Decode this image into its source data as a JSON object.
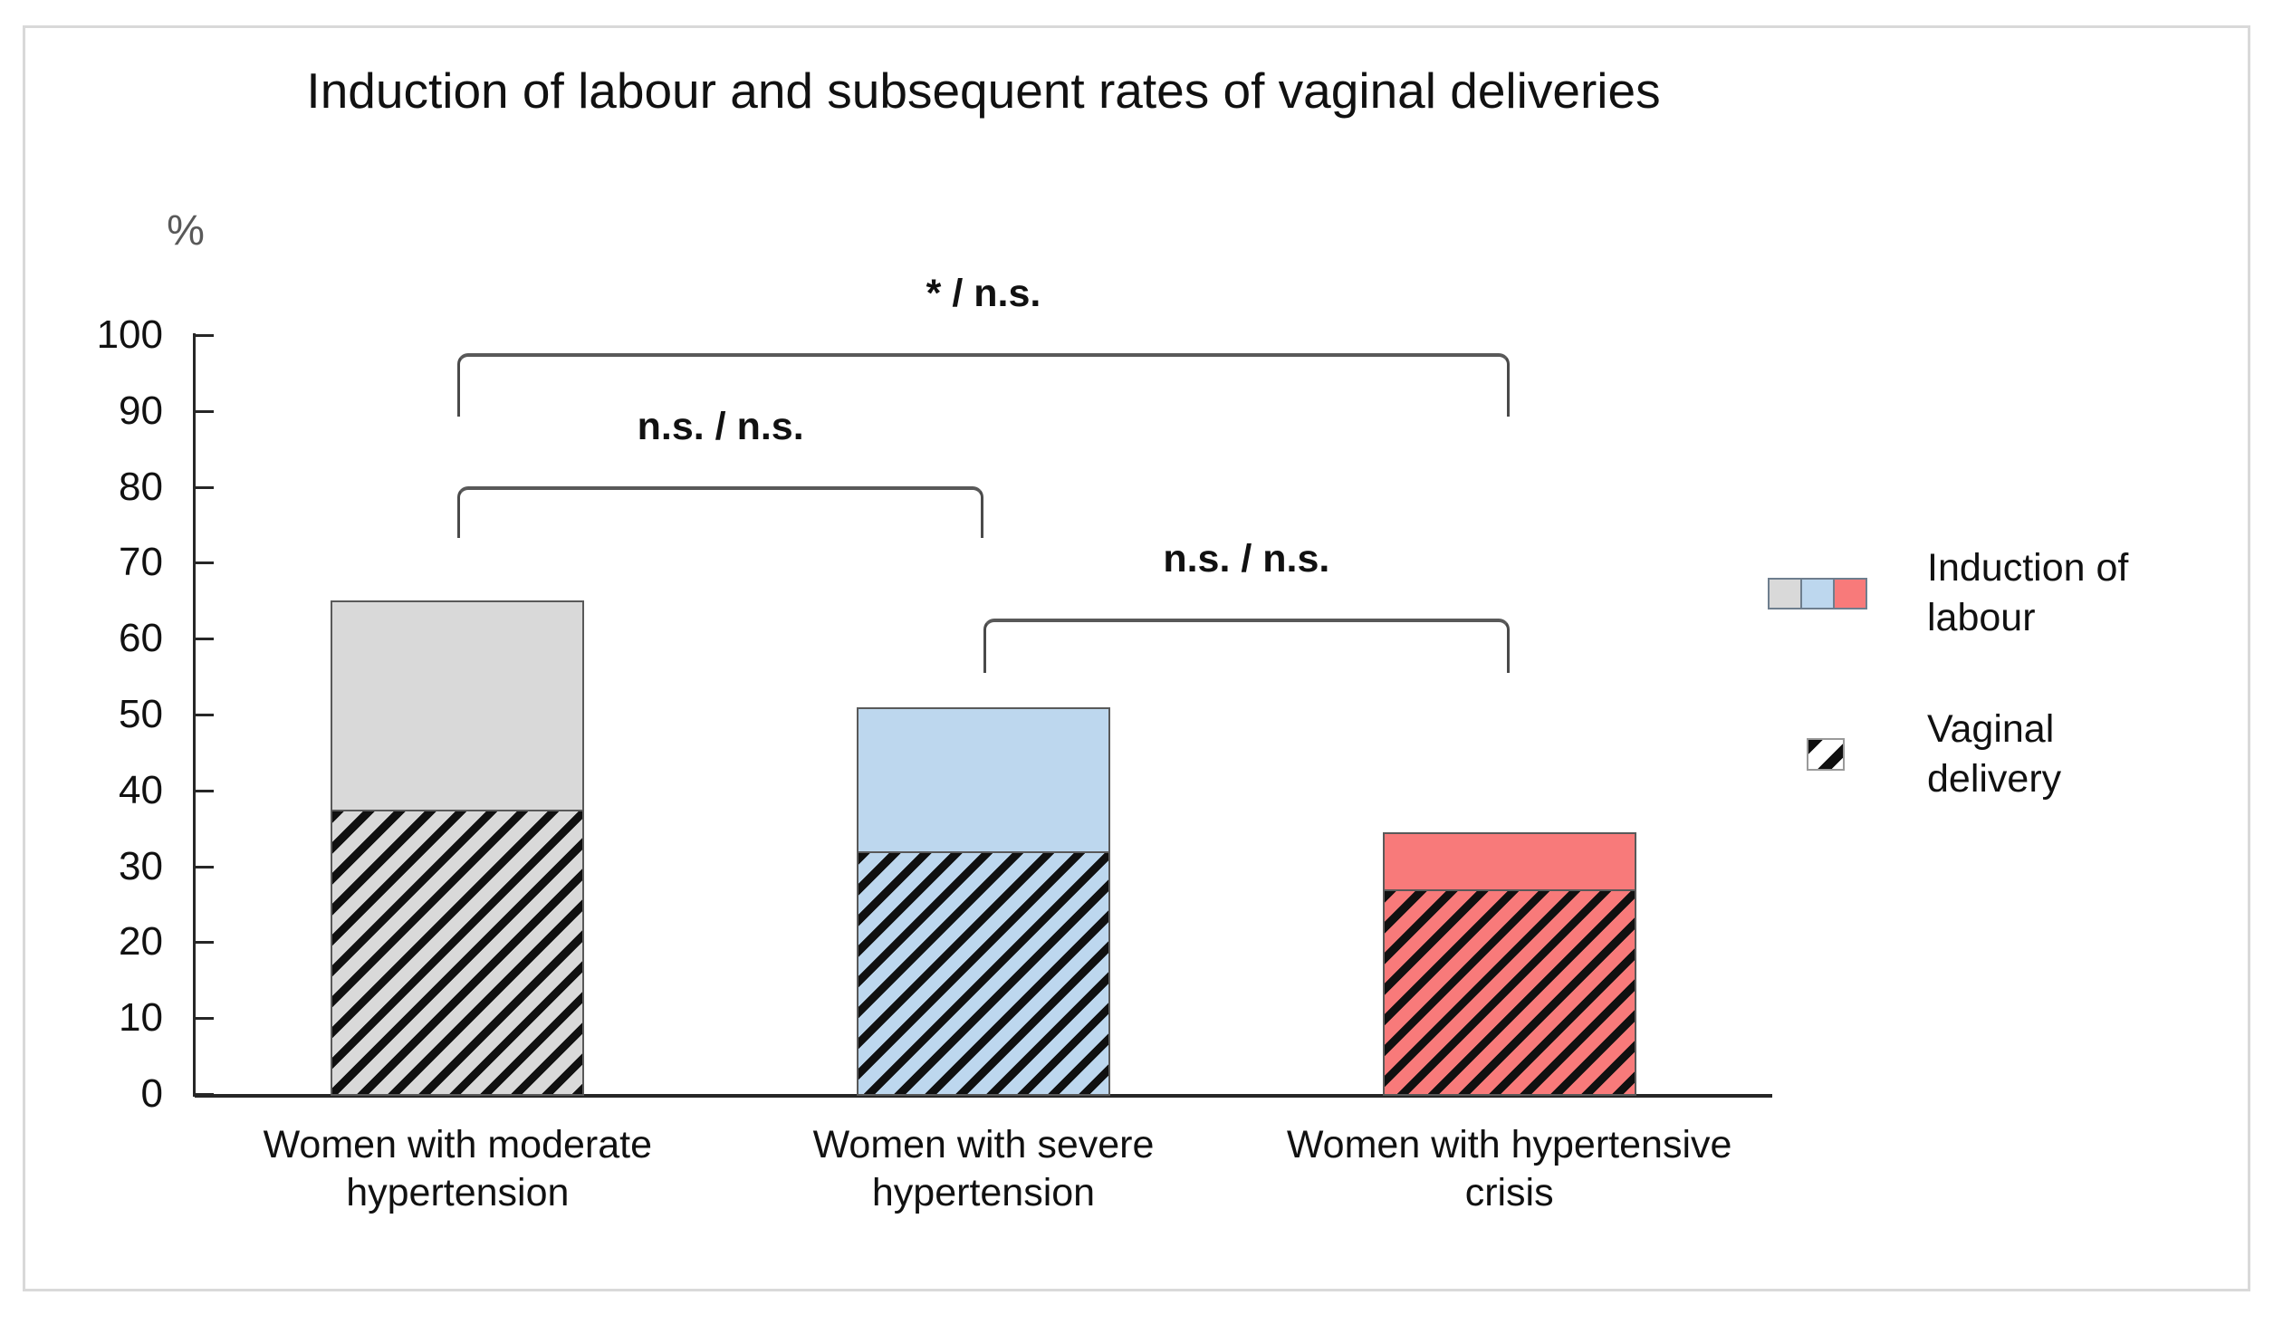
{
  "chart_data": {
    "type": "bar",
    "title": "Induction of labour and subsequent rates of vaginal deliveries",
    "ylabel": "%",
    "xlabel": "",
    "ylim": [
      0,
      100
    ],
    "yticks": [
      0,
      10,
      20,
      30,
      40,
      50,
      60,
      70,
      80,
      90,
      100
    ],
    "grid": "off",
    "categories": [
      "Women with moderate hypertension",
      "Women with severe hypertension",
      "Women with hypertensive crisis"
    ],
    "bar_colors": [
      "#d9d9d9",
      "#bdd7ee",
      "#f87a7a"
    ],
    "bar_border_color": "#595959",
    "hatch_color": "#101010",
    "series": [
      {
        "name": "Induction of labour",
        "style": "solid-fill",
        "values": [
          65,
          51,
          34.5
        ]
      },
      {
        "name": "Vaginal delivery",
        "style": "diagonal-hatch",
        "values": [
          37.5,
          32,
          27
        ]
      }
    ],
    "significance_brackets": [
      {
        "between": [
          "Women with moderate hypertension",
          "Women with hypertensive crisis"
        ],
        "label": "* / n.s."
      },
      {
        "between": [
          "Women with moderate hypertension",
          "Women with severe hypertension"
        ],
        "label": "n.s. / n.s."
      },
      {
        "between": [
          "Women with severe hypertension",
          "Women with hypertensive crisis"
        ],
        "label": "n.s. / n.s."
      }
    ],
    "legend": {
      "position": "right",
      "entries": [
        {
          "label": "Induction of labour",
          "swatch": "three-color-row"
        },
        {
          "label": "Vaginal delivery",
          "swatch": "hatch-square"
        }
      ]
    }
  }
}
